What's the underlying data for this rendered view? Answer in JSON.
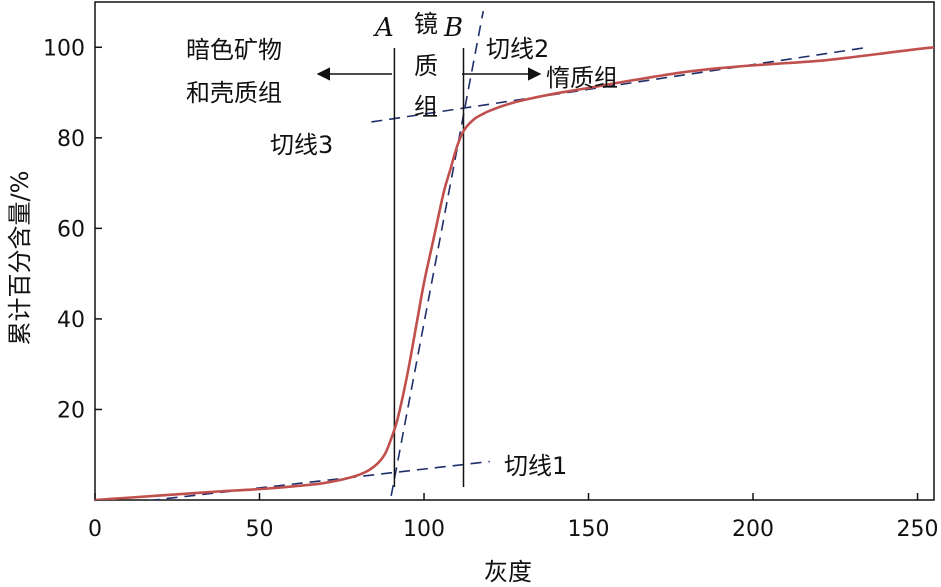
{
  "chart_data": {
    "type": "line",
    "xlabel": "灰度",
    "ylabel": "累计百分含量/%",
    "xlim": [
      0,
      255
    ],
    "ylim": [
      0,
      110
    ],
    "x_ticks": [
      "0",
      "50",
      "100",
      "150",
      "200",
      "250"
    ],
    "y_ticks": [
      "20",
      "40",
      "60",
      "80",
      "100"
    ],
    "grid": false,
    "series": [
      {
        "x": [
          0,
          10,
          20,
          30,
          40,
          50,
          60,
          70,
          80,
          85,
          88,
          90,
          92,
          95,
          98,
          100,
          103,
          106,
          108,
          110,
          112,
          115,
          118,
          120,
          125,
          130,
          140,
          150,
          160,
          170,
          180,
          190,
          200,
          210,
          220,
          230,
          240,
          250,
          255
        ],
        "y": [
          0,
          0.5,
          1,
          1.5,
          2,
          2.4,
          3,
          3.8,
          5.5,
          7.5,
          10,
          13.5,
          18,
          28,
          40,
          48,
          58,
          68,
          73,
          78,
          81.5,
          84,
          85.3,
          86,
          87.3,
          88.3,
          89.8,
          91,
          92.3,
          93.5,
          94.6,
          95.4,
          96,
          96.5,
          97,
          97.8,
          98.7,
          99.6,
          100
        ],
        "color": "#c0504d"
      }
    ],
    "tangents": [
      {
        "label": "切线1",
        "x": [
          0,
          120
        ],
        "y": [
          -1.5,
          8.5
        ]
      },
      {
        "label": "切线2",
        "x": [
          89,
          118
        ],
        "y": [
          -3,
          108
        ]
      },
      {
        "label": "切线3",
        "x": [
          84,
          235
        ],
        "y": [
          83.5,
          100
        ]
      }
    ],
    "tangent_color": "#1f2f6b",
    "boundaries": [
      {
        "label": "A",
        "x": 91
      },
      {
        "label": "B",
        "x": 112
      }
    ],
    "regions": {
      "left": [
        "暗色矿物",
        "和壳质组"
      ],
      "middle": [
        "镜",
        "质",
        "组"
      ],
      "right": "惰质组"
    }
  }
}
